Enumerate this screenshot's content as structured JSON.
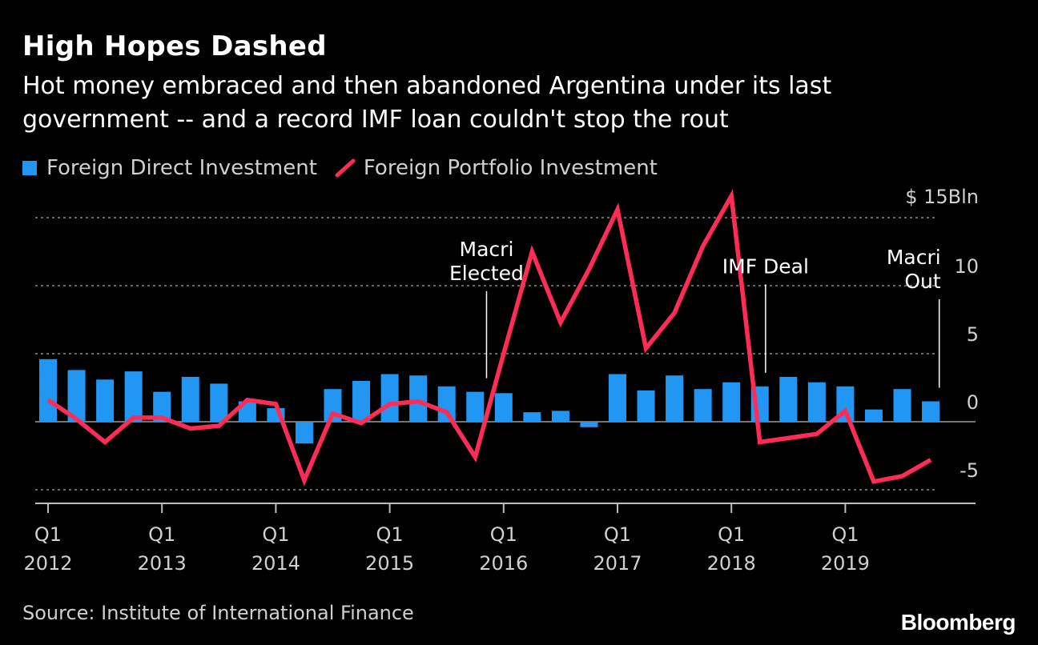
{
  "chart_data": {
    "type": "bar",
    "title": "High Hopes Dashed",
    "subtitle": "Hot money embraced and then abandoned Argentina under its last government -- and a record IMF loan couldn't stop the rout",
    "xlabel": "",
    "ylabel": "",
    "ylim": [
      -6.5,
      15
    ],
    "y_unit_label": "$ 15Bln",
    "y_ticks": [
      {
        "value": 15,
        "label": "$ 15Bln"
      },
      {
        "value": 10,
        "label": "10"
      },
      {
        "value": 5,
        "label": "5"
      },
      {
        "value": 0,
        "label": "0"
      },
      {
        "value": -5,
        "label": "-5"
      }
    ],
    "x_tick_labels": [
      {
        "q": "Q1",
        "year": "2012"
      },
      {
        "q": "Q1",
        "year": "2013"
      },
      {
        "q": "Q1",
        "year": "2014"
      },
      {
        "q": "Q1",
        "year": "2015"
      },
      {
        "q": "Q1",
        "year": "2016"
      },
      {
        "q": "Q1",
        "year": "2017"
      },
      {
        "q": "Q1",
        "year": "2018"
      },
      {
        "q": "Q1",
        "year": "2019"
      }
    ],
    "categories": [
      "2012 Q1",
      "2012 Q2",
      "2012 Q3",
      "2012 Q4",
      "2013 Q1",
      "2013 Q2",
      "2013 Q3",
      "2013 Q4",
      "2014 Q1",
      "2014 Q2",
      "2014 Q3",
      "2014 Q4",
      "2015 Q1",
      "2015 Q2",
      "2015 Q3",
      "2015 Q4",
      "2016 Q1",
      "2016 Q2",
      "2016 Q3",
      "2016 Q4",
      "2017 Q1",
      "2017 Q2",
      "2017 Q3",
      "2017 Q4",
      "2018 Q1",
      "2018 Q2",
      "2018 Q3",
      "2018 Q4",
      "2019 Q1",
      "2019 Q2",
      "2019 Q3",
      "2019 Q4"
    ],
    "series": [
      {
        "name": "Foreign Direct Investment",
        "type": "bar",
        "color": "#2196f3",
        "values": [
          4.6,
          3.8,
          3.1,
          3.7,
          2.2,
          3.3,
          2.8,
          1.5,
          1.0,
          -1.6,
          2.4,
          3.0,
          3.5,
          3.4,
          2.6,
          2.2,
          2.1,
          0.7,
          0.8,
          -0.4,
          3.5,
          2.3,
          3.4,
          2.4,
          2.9,
          2.6,
          3.3,
          2.9,
          2.6,
          0.9,
          2.4,
          1.5
        ]
      },
      {
        "name": "Foreign Portfolio Investment",
        "type": "line",
        "color": "#ff2d55",
        "values": [
          1.6,
          0.2,
          -1.5,
          0.3,
          0.3,
          -0.5,
          -0.3,
          1.6,
          1.3,
          -4.3,
          0.6,
          -0.1,
          1.3,
          1.5,
          0.7,
          -2.6,
          5.0,
          12.5,
          7.3,
          11.2,
          15.6,
          5.4,
          8.0,
          12.9,
          16.6,
          -1.5,
          -1.2,
          -0.9,
          0.8,
          -4.4,
          -4.0,
          -2.8
        ]
      }
    ],
    "annotations": [
      {
        "lines": [
          "Macri",
          "Elected"
        ],
        "index": 15.4,
        "align": "center",
        "line_top": 9.6,
        "line_bottom": 3.2
      },
      {
        "lines": [
          "IMF Deal"
        ],
        "index": 25.2,
        "align": "center",
        "line_top": 10.1,
        "line_bottom": 3.6
      },
      {
        "lines": [
          "Macri",
          "Out"
        ],
        "index": 31.3,
        "align": "right",
        "line_top": 9.0,
        "line_bottom": 2.5
      }
    ],
    "legend_position": "top-left",
    "grid": true
  },
  "source": "Source: Institute of International Finance",
  "brand": "Bloomberg"
}
